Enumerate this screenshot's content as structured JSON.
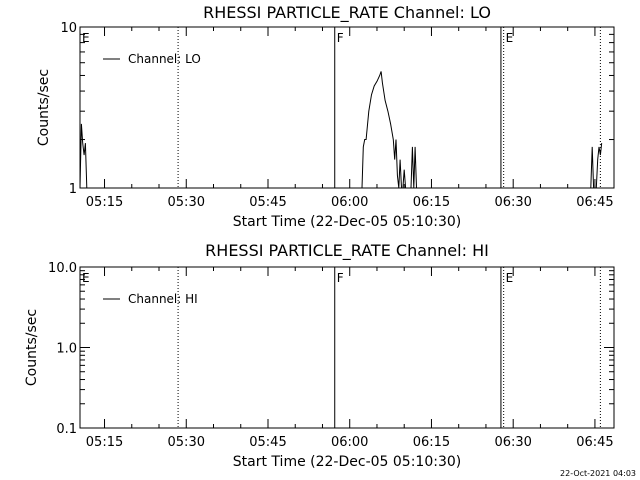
{
  "timestamp": "22-Oct-2021 04:03",
  "chart_data": [
    {
      "type": "line",
      "title": "RHESSI PARTICLE_RATE Channel: LO",
      "xlabel": "Start Time (22-Dec-05 05:10:30)",
      "ylabel": "Counts/sec",
      "ylog": true,
      "ylim": [
        1,
        10
      ],
      "xlim": [
        "05:10:30",
        "06:48:30"
      ],
      "x_ticks": [
        "05:15",
        "05:30",
        "05:45",
        "06:00",
        "06:15",
        "06:30",
        "06:45"
      ],
      "y_ticks": [
        "1",
        "10"
      ],
      "legend": {
        "position": "top-left",
        "entries": [
          "Channel: LO"
        ]
      },
      "series": [
        {
          "name": "Channel: LO",
          "segments": [
            {
              "x": [
                "05:10:30",
                "05:10:45",
                "05:11:00",
                "05:11:15",
                "05:11:30",
                "05:11:45"
              ],
              "y": [
                1.0,
                2.5,
                1.9,
                1.6,
                1.9,
                1.0
              ]
            },
            {
              "x": [
                "06:02:15",
                "06:02:30",
                "06:02:45",
                "06:03:00",
                "06:03:30",
                "06:04:00",
                "06:04:30",
                "06:05:00",
                "06:05:30",
                "06:05:45",
                "06:06:00",
                "06:06:30",
                "06:07:00",
                "06:07:30",
                "06:08:00",
                "06:08:15",
                "06:08:30",
                "06:08:45",
                "06:09:00",
                "06:09:15",
                "06:09:30",
                "06:09:45",
                "06:10:00",
                "06:10:15",
                "06:10:30",
                "06:10:45",
                "06:11:00",
                "06:11:15",
                "06:11:30",
                "06:11:45",
                "06:12:00",
                "06:12:15"
              ],
              "y": [
                1.0,
                1.8,
                2.0,
                2.0,
                3.0,
                3.8,
                4.3,
                4.6,
                5.0,
                5.3,
                4.5,
                3.5,
                3.0,
                2.5,
                2.0,
                1.5,
                2.0,
                1.2,
                1.0,
                1.5,
                1.0,
                1.0,
                1.3,
                1.0,
                1.0,
                1.0,
                1.0,
                1.0,
                1.8,
                1.0,
                1.8,
                1.0
              ]
            },
            {
              "x": [
                "06:44:15",
                "06:44:30",
                "06:44:45",
                "06:45:00"
              ],
              "y": [
                1.0,
                1.8,
                1.0,
                1.0
              ]
            },
            {
              "x": [
                "06:45:15",
                "06:45:30",
                "06:45:45",
                "06:46:00",
                "06:46:15"
              ],
              "y": [
                1.0,
                1.5,
                1.8,
                1.6,
                1.9
              ]
            }
          ]
        }
      ],
      "annotations": [
        {
          "time": "05:10:30",
          "text": "E",
          "style": "none"
        },
        {
          "time": "05:28:30",
          "text": "",
          "style": "dotted"
        },
        {
          "time": "05:57:15",
          "text": "F",
          "style": "solid"
        },
        {
          "time": "06:27:45",
          "text": "",
          "style": "solid"
        },
        {
          "time": "06:28:15",
          "text": "E",
          "style": "dotted"
        },
        {
          "time": "06:46:00",
          "text": "",
          "style": "dotted"
        }
      ]
    },
    {
      "type": "line",
      "title": "RHESSI PARTICLE_RATE Channel: HI",
      "xlabel": "Start Time (22-Dec-05 05:10:30)",
      "ylabel": "Counts/sec",
      "ylog": true,
      "ylim": [
        0.1,
        10
      ],
      "xlim": [
        "05:10:30",
        "06:48:30"
      ],
      "x_ticks": [
        "05:15",
        "05:30",
        "05:45",
        "06:00",
        "06:15",
        "06:30",
        "06:45"
      ],
      "y_ticks": [
        "0.1",
        "1.0",
        "10.0"
      ],
      "legend": {
        "position": "top-left",
        "entries": [
          "Channel: HI"
        ]
      },
      "series": [
        {
          "name": "Channel: HI",
          "segments": []
        }
      ],
      "annotations": [
        {
          "time": "05:10:30",
          "text": "E",
          "style": "none"
        },
        {
          "time": "05:28:30",
          "text": "",
          "style": "dotted"
        },
        {
          "time": "05:57:15",
          "text": "F",
          "style": "solid"
        },
        {
          "time": "06:27:45",
          "text": "",
          "style": "solid"
        },
        {
          "time": "06:28:15",
          "text": "E",
          "style": "dotted"
        },
        {
          "time": "06:46:00",
          "text": "",
          "style": "dotted"
        }
      ]
    }
  ]
}
